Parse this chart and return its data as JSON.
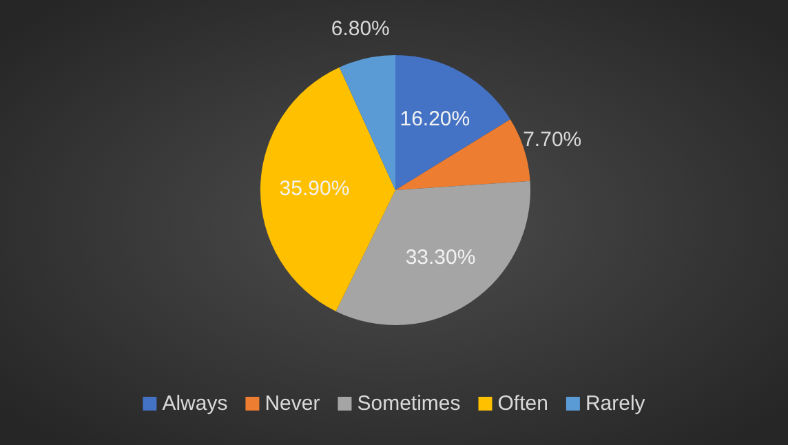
{
  "chart_data": {
    "type": "pie",
    "categories": [
      "Always",
      "Never",
      "Sometimes",
      "Often",
      "Rarely"
    ],
    "values": [
      16.2,
      7.7,
      33.3,
      35.9,
      6.8
    ],
    "colors": [
      "#4472c4",
      "#ed7d31",
      "#a5a5a5",
      "#ffc000",
      "#5b9bd5"
    ],
    "value_labels": [
      "16.20%",
      "7.70%",
      "33.30%",
      "35.90%",
      "6.80%"
    ],
    "legend": "bottom"
  }
}
